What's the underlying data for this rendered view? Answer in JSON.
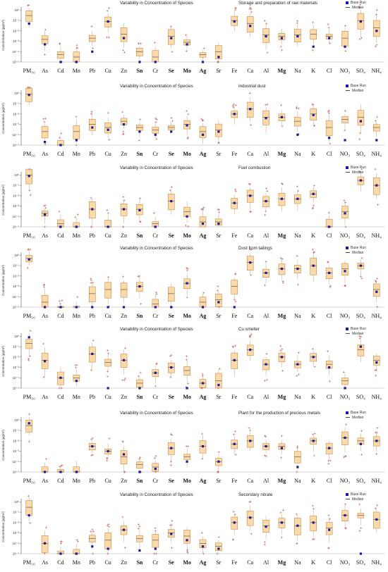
{
  "chart_data": [
    {
      "type": "box",
      "title": "Variability in Concentration of Species",
      "source": "Storage and preparation of raw materials",
      "ylabel": "Concentration (µg/m³)",
      "y_scale": "log",
      "ylim": [
        1e-05,
        1
      ],
      "yticks": [
        "10⁰",
        "10⁻¹",
        "10⁻²",
        "10⁻³",
        "10⁻⁴",
        "10⁻⁵"
      ],
      "legend": [
        "Base Run",
        "Median"
      ],
      "species": [
        "PM₁₀",
        "As",
        "Cd",
        "Mn",
        "Pb",
        "Cu",
        "Zn",
        "Sn",
        "Cr",
        "Se",
        "Mo",
        "Ag",
        "Sr",
        "Fe",
        "Ca",
        "Al",
        "Mg",
        "Na",
        "K",
        "Cl",
        "NO₃",
        "SO₄",
        "NH₄"
      ],
      "medians": [
        0.3,
        0.0015,
        5e-05,
        3e-05,
        0.002,
        0.08,
        0.005,
        0.0001,
        3e-05,
        0.003,
        0.0008,
        5e-05,
        0.0001,
        0.1,
        0.05,
        0.004,
        0.003,
        0.004,
        0.005,
        0.003,
        0.002,
        0.1,
        0.02
      ],
      "base_run": [
        0.05,
        0.0005,
        1e-05,
        5e-06,
        0.0001,
        0.08,
        0.002,
        1e-05,
        5e-06,
        0.002,
        0.0005,
        5e-06,
        3e-05,
        0.08,
        0.03,
        0.003,
        0.002,
        0.003,
        0.0003,
        0.002,
        0.0003,
        0.08,
        0.01
      ]
    },
    {
      "type": "box",
      "title": "Variability in Concentration of Species",
      "source": "Industrial dust",
      "ylabel": "Concentration (µg/m³)",
      "y_scale": "log",
      "ylim": [
        1e-05,
        1
      ],
      "yticks": [
        "10⁰",
        "10⁻¹",
        "10⁻²",
        "10⁻³",
        "10⁻⁴",
        "10⁻⁵"
      ],
      "legend": [
        "Base Run",
        "Median"
      ],
      "species": [
        "PM₁₀",
        "As",
        "Cd",
        "Mn",
        "Pb",
        "Cu",
        "Zn",
        "Sn",
        "Cr",
        "Se",
        "Mo",
        "Ag",
        "Sr",
        "Fe",
        "Ca",
        "Al",
        "Mg",
        "Na",
        "K",
        "Cl",
        "NO₃",
        "SO₄",
        "NH₄"
      ],
      "medians": [
        0.8,
        0.0002,
        1e-05,
        0.0002,
        0.001,
        0.0005,
        0.002,
        0.0005,
        0.0003,
        0.0005,
        0.001,
        0.0002,
        0.0003,
        0.01,
        0.03,
        0.005,
        0.005,
        0.002,
        0.01,
        0.0005,
        0.003,
        0.005,
        0.0005
      ],
      "base_run": [
        0.7,
        2e-05,
        5e-06,
        3e-05,
        0.0005,
        0.0003,
        0.001,
        0.0002,
        0.0001,
        0.0002,
        0.0008,
        0.0001,
        0.0002,
        0.01,
        0.03,
        0.004,
        0.005,
        0.0001,
        0.008,
        5e-05,
        3e-05,
        0.002,
        3e-05
      ]
    },
    {
      "type": "box",
      "title": "Variability in Concentration of Species",
      "source": "Fuel combustion",
      "ylabel": "Concentration (µg/m³)",
      "y_scale": "log",
      "ylim": [
        1e-05,
        1
      ],
      "yticks": [
        "10⁰",
        "10⁻¹",
        "10⁻²",
        "10⁻³",
        "10⁻⁴",
        "10⁻⁵"
      ],
      "legend": [
        "Base Run",
        "Median"
      ],
      "species": [
        "PM₁₀",
        "As",
        "Cd",
        "Mn",
        "Pb",
        "Cu",
        "Zn",
        "Sn",
        "Cr",
        "Se",
        "Mo",
        "Ag",
        "Sr",
        "Fe",
        "Ca",
        "Al",
        "Mg",
        "Na",
        "K",
        "Cl",
        "NO₃",
        "SO₄",
        "NH₄"
      ],
      "medians": [
        1.0,
        0.0002,
        2e-05,
        1e-05,
        0.0005,
        1e-05,
        0.0005,
        0.0005,
        2e-05,
        0.003,
        0.0003,
        3e-05,
        3e-05,
        0.002,
        0.01,
        0.003,
        0.005,
        0.005,
        0.015,
        1e-05,
        0.0003,
        0.3,
        0.1
      ],
      "base_run": [
        0.8,
        0.00015,
        1e-05,
        5e-06,
        0.0005,
        5e-06,
        0.0005,
        0.0004,
        1e-05,
        0.003,
        0.0001,
        2e-05,
        2e-05,
        0.002,
        0.01,
        0.003,
        0.005,
        0.005,
        0.015,
        5e-06,
        0.0002,
        0.3,
        0.1
      ]
    },
    {
      "type": "box",
      "title": "Variability in Concentration of Species",
      "source": "Dust from tailings",
      "ylabel": "Concentration (µg/m³)",
      "y_scale": "log",
      "ylim": [
        1e-05,
        1
      ],
      "yticks": [
        "10⁰",
        "10⁻¹",
        "10⁻²",
        "10⁻³",
        "10⁻⁴",
        "10⁻⁵"
      ],
      "legend": [
        "Base Run",
        "Median"
      ],
      "species": [
        "PM₁₀",
        "As",
        "Cd",
        "Mn",
        "Pb",
        "Cu",
        "Zn",
        "Sn",
        "Cr",
        "Se",
        "Mo",
        "Ag",
        "Sr",
        "Fe",
        "Ca",
        "Al",
        "Mg",
        "Na",
        "K",
        "Cl",
        "NO₃",
        "SO₄",
        "NH₄"
      ],
      "medians": [
        0.5,
        3e-05,
        5e-06,
        5e-06,
        0.0002,
        0.0005,
        0.0005,
        0.001,
        2e-05,
        0.0002,
        0.002,
        3e-05,
        5e-05,
        0.001,
        0.2,
        0.02,
        0.05,
        0.05,
        0.1,
        0.02,
        0.05,
        0.1,
        0.0005
      ],
      "base_run": [
        0.4,
        1e-05,
        3e-06,
        3e-06,
        1e-05,
        1e-05,
        1e-05,
        0.001,
        1e-05,
        1e-05,
        0.002,
        1e-05,
        3e-05,
        1e-05,
        0.2,
        0.02,
        0.05,
        0.05,
        0.1,
        0.02,
        0.03,
        0.1,
        0.0003
      ]
    },
    {
      "type": "box",
      "title": "Variability in Concentration of Species",
      "source": "Cu smelter",
      "ylabel": "Concentration (µg/m³)",
      "y_scale": "log",
      "ylim": [
        1e-05,
        1
      ],
      "yticks": [
        "10⁰",
        "10⁻¹",
        "10⁻²",
        "10⁻³",
        "10⁻⁴",
        "10⁻⁵"
      ],
      "legend": [
        "Base Run",
        "Median"
      ],
      "species": [
        "PM₁₀",
        "As",
        "Cd",
        "Mn",
        "Pb",
        "Cu",
        "Zn",
        "Sn",
        "Cr",
        "Se",
        "Mo",
        "Ag",
        "Sr",
        "Fe",
        "Ca",
        "Al",
        "Mg",
        "Na",
        "K",
        "Cl",
        "NO₃",
        "SO₄",
        "NH₄"
      ],
      "medians": [
        0.2,
        0.005,
        0.0001,
        0.0001,
        0.02,
        0.003,
        0.005,
        3e-05,
        0.0003,
        0.001,
        0.0005,
        3e-05,
        5e-05,
        0.005,
        0.05,
        0.002,
        0.01,
        0.002,
        0.01,
        0.002,
        5e-05,
        0.05,
        0.005
      ],
      "base_run": [
        0.8,
        0.004,
        0.0001,
        5e-05,
        0.02,
        1e-05,
        0.005,
        5e-06,
        0.0003,
        0.001,
        1e-05,
        3e-05,
        2e-05,
        0.005,
        0.05,
        0.002,
        0.01,
        0.002,
        0.01,
        0.001,
        5e-06,
        0.1,
        0.003
      ]
    },
    {
      "type": "box",
      "title": "Variability in Concentration of Species",
      "source": "Plant for the production of precious metals",
      "ylabel": "Concentration (µg/m³)",
      "y_scale": "log",
      "ylim": [
        1e-05,
        1
      ],
      "yticks": [
        "10⁰",
        "10⁻¹",
        "10⁻²",
        "10⁻³",
        "10⁻⁴",
        "10⁻⁵"
      ],
      "legend": [
        "Base Run",
        "Median"
      ],
      "species": [
        "PM₁₀",
        "As",
        "Cd",
        "Mn",
        "Pb",
        "Cu",
        "Zn",
        "Sn",
        "Cr",
        "Se",
        "Mo",
        "Ag",
        "Sr",
        "Fe",
        "Ca",
        "Al",
        "Mg",
        "Na",
        "K",
        "Cl",
        "NO₃",
        "SO₄",
        "NH₄"
      ],
      "medians": [
        0.3,
        1e-05,
        1e-05,
        1e-05,
        0.003,
        0.001,
        0.0003,
        5e-05,
        3e-05,
        0.002,
        0.0003,
        0.003,
        0.0001,
        0.005,
        0.01,
        0.003,
        0.003,
        0.0003,
        0.01,
        0.002,
        0.02,
        0.01,
        0.01
      ],
      "base_run": [
        0.5,
        5e-06,
        5e-06,
        5e-06,
        0.003,
        0.001,
        0.0005,
        1e-05,
        2e-05,
        0.002,
        0.0001,
        0.003,
        0.0001,
        0.005,
        0.01,
        0.003,
        0.002,
        3e-05,
        0.01,
        0.002,
        0.02,
        0.005,
        0.01
      ]
    },
    {
      "type": "box",
      "title": "Variability in Concentration of Species",
      "source": "Secondary nitrate",
      "ylabel": "Concentration (µg/m³)",
      "y_scale": "log",
      "ylim": [
        1e-05,
        1
      ],
      "yticks": [
        "10⁰",
        "10⁻¹",
        "10⁻²",
        "10⁻³",
        "10⁻⁴",
        "10⁻⁵"
      ],
      "legend": [
        "Base Run",
        "Median"
      ],
      "species": [
        "PM₁₀",
        "As",
        "Cd",
        "Mn",
        "Pb",
        "Cu",
        "Zn",
        "Sn",
        "Cr",
        "Se",
        "Mo",
        "Ag",
        "Sr",
        "Fe",
        "Ca",
        "Al",
        "Mg",
        "Na",
        "K",
        "Cl",
        "NO₃",
        "SO₄",
        "NH₄"
      ],
      "medians": [
        0.3,
        0.0001,
        5e-06,
        5e-06,
        0.0003,
        0.0002,
        0.002,
        0.0003,
        0.0002,
        0.001,
        0.0005,
        0.0001,
        5e-05,
        0.01,
        0.03,
        0.005,
        0.01,
        0.005,
        0.01,
        0.003,
        0.05,
        0.05,
        0.02
      ],
      "base_run": [
        0.05,
        0.0001,
        3e-06,
        3e-06,
        5e-05,
        3e-05,
        0.002,
        2e-05,
        3e-05,
        0.0008,
        0.0002,
        5e-05,
        3e-05,
        0.01,
        0.03,
        0.004,
        0.01,
        0.005,
        0.01,
        0.002,
        0.05,
        5e-06,
        0.02
      ]
    }
  ]
}
